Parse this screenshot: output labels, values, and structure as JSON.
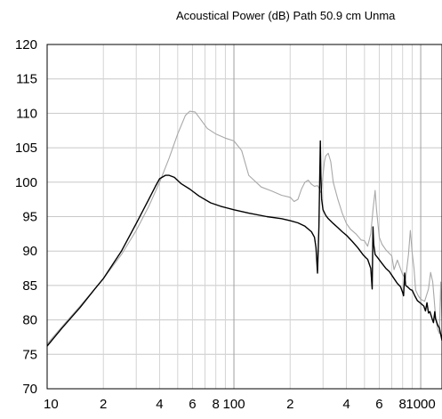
{
  "chart_data": {
    "type": "line",
    "title": "Acoustical Power (dB)   Path 50.9 cm   Unma",
    "xlabel": "",
    "ylabel": "",
    "x_scale": "log",
    "xlim": [
      10,
      1300
    ],
    "ylim": [
      70,
      120
    ],
    "grid": true,
    "y_ticks": [
      70,
      75,
      80,
      85,
      90,
      95,
      100,
      105,
      110,
      115,
      120
    ],
    "x_ticks": [
      {
        "value": 10,
        "label": "10"
      },
      {
        "value": 20,
        "label": "2"
      },
      {
        "value": 40,
        "label": "4"
      },
      {
        "value": 60,
        "label": "6"
      },
      {
        "value": 80,
        "label": "8"
      },
      {
        "value": 100,
        "label": "100"
      },
      {
        "value": 200,
        "label": "2"
      },
      {
        "value": 400,
        "label": "4"
      },
      {
        "value": 600,
        "label": "6"
      },
      {
        "value": 800,
        "label": "8"
      },
      {
        "value": 1000,
        "label": "1000"
      }
    ],
    "series": [
      {
        "color": "#a8a8a8",
        "x": [
          10,
          12,
          15,
          18,
          20,
          25,
          30,
          35,
          40,
          45,
          50,
          55,
          58,
          62,
          66,
          72,
          80,
          90,
          100,
          110,
          120,
          140,
          160,
          180,
          200,
          210,
          220,
          230,
          240,
          250,
          260,
          270,
          280,
          285,
          290,
          295,
          300,
          305,
          310,
          320,
          330,
          340,
          360,
          380,
          400,
          420,
          450,
          480,
          500,
          520,
          540,
          555,
          570,
          580,
          600,
          620,
          650,
          700,
          720,
          750,
          800,
          830,
          860,
          880,
          900,
          920,
          940,
          970,
          1000,
          1050,
          1100,
          1130,
          1160,
          1180,
          1200,
          1230,
          1260,
          1280,
          1300
        ],
        "y": [
          76.5,
          79,
          82,
          84.5,
          86,
          89.5,
          93,
          96.5,
          100,
          103.5,
          107,
          109.7,
          110.3,
          110.2,
          109.2,
          107.8,
          107,
          106.4,
          106,
          104.6,
          101,
          99.3,
          98.7,
          98.1,
          97.8,
          97.2,
          97.5,
          99,
          100,
          100.3,
          99.7,
          99.4,
          99.5,
          99.2,
          98.5,
          99,
          101,
          103,
          103.8,
          104.2,
          103,
          100,
          97.5,
          95.5,
          94,
          93.2,
          92.5,
          91.6,
          91.5,
          90.7,
          92.5,
          96,
          98.8,
          96,
          92,
          91,
          90.2,
          89.3,
          87.3,
          88.7,
          86.6,
          86,
          89.5,
          93,
          89.7,
          87.5,
          84.3,
          83.5,
          83,
          82.7,
          84.5,
          86.9,
          85.5,
          83,
          80.5,
          78.7,
          78,
          85.5,
          80
        ]
      },
      {
        "color": "#000000",
        "x": [
          10,
          12,
          15,
          18,
          20,
          25,
          30,
          35,
          38,
          40,
          43,
          45,
          48,
          52,
          58,
          65,
          75,
          85,
          100,
          120,
          150,
          180,
          200,
          220,
          240,
          260,
          270,
          275,
          280,
          285,
          290,
          292,
          295,
          300,
          310,
          320,
          340,
          360,
          380,
          400,
          430,
          460,
          490,
          510,
          520,
          540,
          550,
          555,
          560,
          570,
          590,
          620,
          650,
          680,
          700,
          720,
          750,
          780,
          800,
          810,
          820,
          830,
          850,
          880,
          900,
          930,
          960,
          1000,
          1040,
          1060,
          1080,
          1100,
          1120,
          1150,
          1170,
          1180,
          1190,
          1200,
          1230,
          1260,
          1300
        ],
        "y": [
          76.2,
          78.8,
          81.8,
          84.5,
          86,
          90,
          94,
          97.5,
          99.4,
          100.5,
          101,
          101,
          100.7,
          99.8,
          99,
          98,
          97,
          96.5,
          96,
          95.5,
          95,
          94.7,
          94.4,
          94.1,
          93.6,
          92.8,
          92,
          90.5,
          86.8,
          93.5,
          106,
          101,
          97.5,
          96,
          95.2,
          94.7,
          94,
          93.4,
          92.8,
          92.3,
          91.4,
          90.5,
          89.5,
          89,
          88.8,
          87.5,
          84.5,
          93.5,
          91,
          89.5,
          89,
          88.2,
          87.5,
          87,
          86.5,
          86,
          85.3,
          84.8,
          84,
          83.5,
          86.8,
          85,
          84.8,
          84.4,
          84.3,
          83.5,
          82.8,
          82.4,
          82,
          81.3,
          82.5,
          81,
          81.2,
          80.2,
          79.6,
          80.5,
          81.2,
          80.2,
          79.3,
          78.8,
          77
        ]
      }
    ]
  }
}
